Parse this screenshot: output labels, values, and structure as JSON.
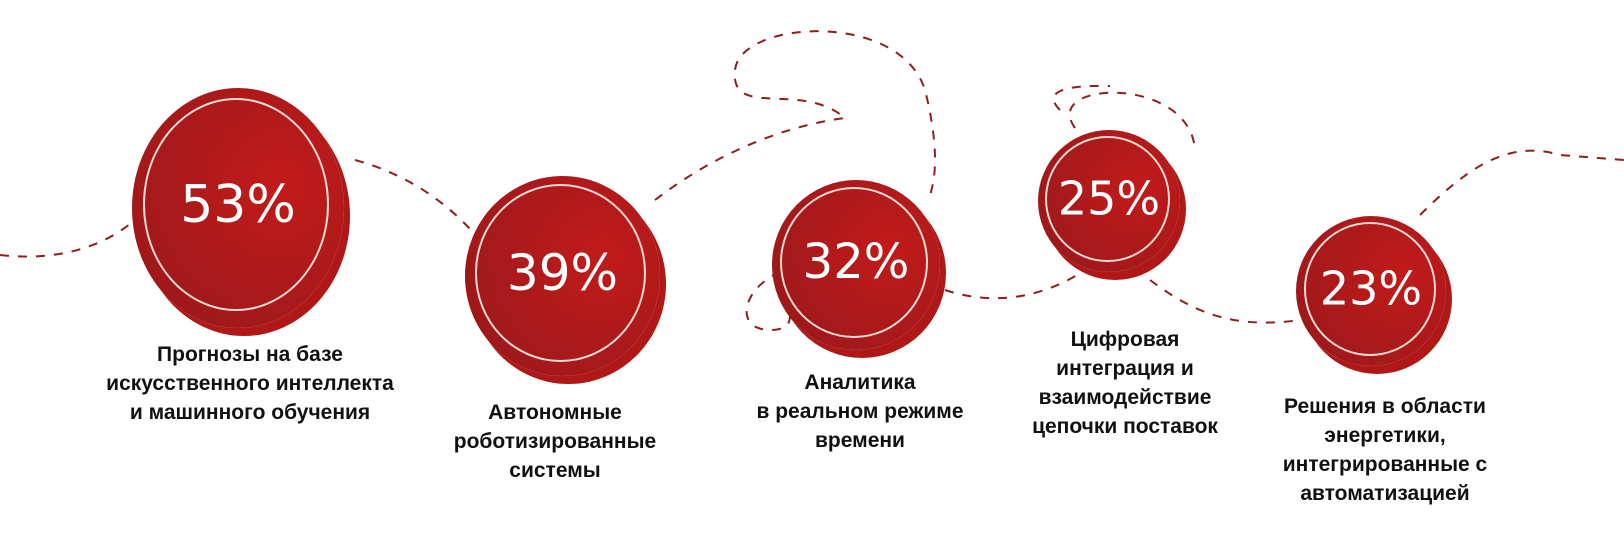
{
  "accent_color": "#a3191b",
  "items": [
    {
      "value": "53%",
      "label": "Прогнозы на базе искусственного интеллекта и машинного обучения",
      "lines": [
        "Прогнозы на базе",
        "искусственного интеллекта",
        "и машинного обучения"
      ]
    },
    {
      "value": "39%",
      "label": "Автономные роботизированные системы",
      "lines": [
        "Автономные",
        "роботизированные",
        "системы"
      ]
    },
    {
      "value": "32%",
      "label": "Аналитика в реальном режиме времени",
      "lines": [
        "Аналитика",
        "в реальном режиме",
        "времени"
      ]
    },
    {
      "value": "25%",
      "label": "Цифровая интеграция и взаимодействие цепочки поставок",
      "lines": [
        "Цифровая",
        "интеграция и",
        "взаимодействие",
        "цепочки поставок"
      ]
    },
    {
      "value": "23%",
      "label": "Решения в области энергетики, интегрированные с автоматизацией",
      "lines": [
        "Решения в области",
        "энергетики,",
        "интегрированные с",
        "автоматизацией"
      ]
    }
  ]
}
